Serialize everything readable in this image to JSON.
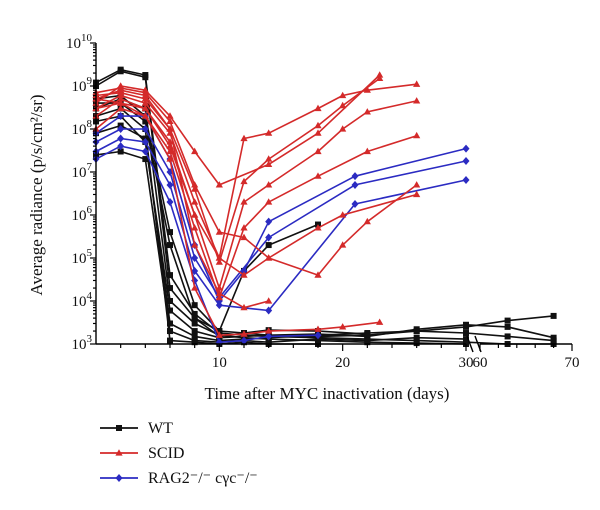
{
  "chart_data": {
    "type": "line",
    "xlabel": "Time after MYC inactivation (days)",
    "ylabel": "Average radiance (p/s/cm²/sr)",
    "y_scale": "log",
    "ylim": [
      1000,
      10000000000
    ],
    "y_ticks": [
      {
        "value": 1000,
        "base": "10",
        "exp": "3"
      },
      {
        "value": 10000,
        "base": "10",
        "exp": "4"
      },
      {
        "value": 100000,
        "base": "10",
        "exp": "5"
      },
      {
        "value": 1000000,
        "base": "10",
        "exp": "6"
      },
      {
        "value": 10000000,
        "base": "10",
        "exp": "7"
      },
      {
        "value": 100000000,
        "base": "10",
        "exp": "8"
      },
      {
        "value": 1000000000,
        "base": "10",
        "exp": "9"
      },
      {
        "value": 10000000000,
        "base": "10",
        "exp": "10"
      }
    ],
    "x_axis_break": {
      "segment1": [
        0,
        30
      ],
      "segment2": [
        60,
        70
      ]
    },
    "x_ticks": [
      {
        "value": 10,
        "label": "10"
      },
      {
        "value": 20,
        "label": "20"
      },
      {
        "value": 30,
        "label": "30"
      },
      {
        "value": 60,
        "label": "60"
      },
      {
        "value": 70,
        "label": "70"
      }
    ],
    "legend": {
      "position": "bottom-left",
      "entries": [
        {
          "label": "WT",
          "color": "#111111",
          "marker": "square"
        },
        {
          "label": "SCID",
          "color": "#d42a2a",
          "marker": "triangle"
        },
        {
          "label": "RAG2⁻/⁻ cγc⁻/⁻",
          "color": "#2b2bc2",
          "marker": "diamond"
        }
      ]
    },
    "series": [
      {
        "group": "WT",
        "color": "#111111",
        "marker": "square",
        "points": [
          [
            0,
            1200000000.0
          ],
          [
            2,
            2400000000.0
          ],
          [
            4,
            1800000000.0
          ],
          [
            6,
            40000.0
          ],
          [
            8,
            5000.0
          ],
          [
            10,
            1800.0
          ],
          [
            12,
            1600.0
          ],
          [
            14,
            1500.0
          ],
          [
            18,
            1400.0
          ],
          [
            22,
            1300.0
          ],
          [
            26,
            1200.0
          ],
          [
            30,
            1100.0
          ],
          [
            63,
            1000.0
          ],
          [
            68,
            1000.0
          ]
        ]
      },
      {
        "group": "WT",
        "color": "#111111",
        "marker": "square",
        "points": [
          [
            0,
            1000000000.0
          ],
          [
            2,
            2200000000.0
          ],
          [
            4,
            1600000000.0
          ],
          [
            6,
            20000.0
          ],
          [
            8,
            4000.0
          ],
          [
            10,
            2000.0
          ],
          [
            12,
            1800.0
          ],
          [
            14,
            1600.0
          ],
          [
            18,
            1500.0
          ],
          [
            22,
            1600.0
          ],
          [
            26,
            2000.0
          ],
          [
            30,
            2500.0
          ],
          [
            63,
            3500.0
          ],
          [
            68,
            4500.0
          ]
        ]
      },
      {
        "group": "WT",
        "color": "#111111",
        "marker": "square",
        "points": [
          [
            0,
            300000000.0
          ],
          [
            2,
            500000000.0
          ],
          [
            4,
            300000000.0
          ],
          [
            6,
            10000.0
          ],
          [
            8,
            3000.0
          ],
          [
            10,
            1600.0
          ],
          [
            12,
            1400.0
          ],
          [
            14,
            1300.0
          ],
          [
            18,
            1200.0
          ],
          [
            22,
            1100.0
          ],
          [
            26,
            1050.0
          ],
          [
            30,
            1000.0
          ]
        ]
      },
      {
        "group": "WT",
        "color": "#111111",
        "marker": "square",
        "points": [
          [
            0,
            200000000.0
          ],
          [
            2,
            300000000.0
          ],
          [
            4,
            100000000.0
          ],
          [
            6,
            1200.0
          ],
          [
            8,
            1100.0
          ],
          [
            10,
            1000.0
          ],
          [
            12,
            1100.0
          ],
          [
            14,
            1000.0
          ],
          [
            18,
            1000.0
          ]
        ]
      },
      {
        "group": "WT",
        "color": "#111111",
        "marker": "square",
        "points": [
          [
            0,
            150000000.0
          ],
          [
            2,
            200000000.0
          ],
          [
            4,
            50000000.0
          ],
          [
            6,
            6000.0
          ],
          [
            8,
            2000.0
          ],
          [
            10,
            1400.0
          ],
          [
            12,
            1500.0
          ],
          [
            14,
            1600.0
          ],
          [
            18,
            1700.0
          ],
          [
            22,
            1500.0
          ],
          [
            26,
            2200.0
          ],
          [
            30,
            2800.0
          ],
          [
            63,
            2500.0
          ],
          [
            68,
            1400.0
          ]
        ]
      },
      {
        "group": "WT",
        "color": "#111111",
        "marker": "square",
        "points": [
          [
            0,
            80000000.0
          ],
          [
            2,
            120000000.0
          ],
          [
            4,
            60000000.0
          ],
          [
            6,
            3000.0
          ],
          [
            8,
            1500.0
          ],
          [
            10,
            1200.0
          ],
          [
            12,
            1300.0
          ],
          [
            14,
            1400.0
          ],
          [
            18,
            1600.0
          ],
          [
            22,
            1800.0
          ],
          [
            26,
            2000.0
          ],
          [
            30,
            1800.0
          ],
          [
            63,
            1500.0
          ],
          [
            68,
            1200.0
          ]
        ]
      },
      {
        "group": "WT",
        "color": "#111111",
        "marker": "square",
        "points": [
          [
            0,
            25000000.0
          ],
          [
            2,
            30000000.0
          ],
          [
            4,
            20000000.0
          ],
          [
            6,
            2000.0
          ],
          [
            8,
            1200.0
          ],
          [
            10,
            1100.0
          ],
          [
            12,
            1200.0
          ],
          [
            14,
            1100.0
          ],
          [
            18,
            1300.0
          ],
          [
            22,
            1200.0
          ],
          [
            26,
            1400.0
          ],
          [
            30,
            1300.0
          ]
        ]
      },
      {
        "group": "WT",
        "color": "#111111",
        "marker": "square",
        "points": [
          [
            0,
            500000000.0
          ],
          [
            2,
            600000000.0
          ],
          [
            4,
            200000000.0
          ],
          [
            6,
            400000.0
          ],
          [
            8,
            8000.0
          ],
          [
            10,
            2000.0
          ],
          [
            12,
            50000.0
          ],
          [
            14,
            200000.0
          ],
          [
            18,
            600000.0
          ]
        ]
      },
      {
        "group": "WT",
        "color": "#111111",
        "marker": "square",
        "points": [
          [
            0,
            400000000.0
          ],
          [
            2,
            400000000.0
          ],
          [
            4,
            150000000.0
          ],
          [
            6,
            200000.0
          ],
          [
            8,
            4000.0
          ],
          [
            10,
            1500.0
          ],
          [
            12,
            1800.0
          ],
          [
            14,
            2100.0
          ],
          [
            18,
            2000.0
          ],
          [
            22,
            1700.0
          ]
        ]
      },
      {
        "group": "SCID",
        "color": "#d42a2a",
        "marker": "triangle",
        "points": [
          [
            0,
            500000000.0
          ],
          [
            2,
            800000000.0
          ],
          [
            4,
            600000000.0
          ],
          [
            6,
            100000000.0
          ],
          [
            8,
            4000000.0
          ],
          [
            10,
            80000.0
          ],
          [
            12,
            6000000.0
          ],
          [
            14,
            20000000.0
          ],
          [
            18,
            120000000.0
          ],
          [
            20,
            350000000.0
          ],
          [
            23,
            1500000000.0
          ]
        ]
      },
      {
        "group": "SCID",
        "color": "#d42a2a",
        "marker": "triangle",
        "points": [
          [
            0,
            400000000.0
          ],
          [
            2,
            1000000000.0
          ],
          [
            4,
            800000000.0
          ],
          [
            6,
            200000000.0
          ],
          [
            8,
            30000000.0
          ],
          [
            10,
            5000000.0
          ],
          [
            14,
            15000000.0
          ],
          [
            18,
            80000000.0
          ],
          [
            23,
            1800000000.0
          ]
        ]
      },
      {
        "group": "SCID",
        "color": "#d42a2a",
        "marker": "triangle",
        "points": [
          [
            0,
            300000000.0
          ],
          [
            2,
            600000000.0
          ],
          [
            4,
            400000000.0
          ],
          [
            6,
            80000000.0
          ],
          [
            8,
            2000000.0
          ],
          [
            10,
            100000.0
          ],
          [
            12,
            60000000.0
          ],
          [
            14,
            80000000.0
          ],
          [
            18,
            300000000.0
          ],
          [
            20,
            600000000.0
          ],
          [
            22,
            800000000.0
          ],
          [
            26,
            1100000000.0
          ]
        ]
      },
      {
        "group": "SCID",
        "color": "#d42a2a",
        "marker": "triangle",
        "points": [
          [
            0,
            200000000.0
          ],
          [
            2,
            500000000.0
          ],
          [
            4,
            300000000.0
          ],
          [
            6,
            50000000.0
          ],
          [
            8,
            1000000.0
          ],
          [
            10,
            20000.0
          ],
          [
            12,
            2000000.0
          ],
          [
            14,
            5000000.0
          ],
          [
            18,
            30000000.0
          ],
          [
            20,
            100000000.0
          ],
          [
            22,
            250000000.0
          ],
          [
            26,
            450000000.0
          ]
        ]
      },
      {
        "group": "SCID",
        "color": "#d42a2a",
        "marker": "triangle",
        "points": [
          [
            0,
            100000000.0
          ],
          [
            2,
            300000000.0
          ],
          [
            4,
            200000000.0
          ],
          [
            6,
            30000000.0
          ],
          [
            8,
            500000.0
          ],
          [
            10,
            12000.0
          ],
          [
            12,
            500000.0
          ],
          [
            14,
            2000000.0
          ],
          [
            18,
            8000000.0
          ],
          [
            22,
            30000000.0
          ],
          [
            26,
            70000000.0
          ]
        ]
      },
      {
        "group": "SCID",
        "color": "#d42a2a",
        "marker": "triangle",
        "points": [
          [
            0,
            700000000.0
          ],
          [
            2,
            900000000.0
          ],
          [
            4,
            700000000.0
          ],
          [
            6,
            150000000.0
          ],
          [
            8,
            5000000.0
          ],
          [
            10,
            400000.0
          ],
          [
            12,
            300000.0
          ],
          [
            14,
            100000.0
          ],
          [
            18,
            40000.0
          ],
          [
            20,
            200000.0
          ],
          [
            22,
            700000.0
          ],
          [
            26,
            5000000.0
          ]
        ]
      },
      {
        "group": "SCID",
        "color": "#d42a2a",
        "marker": "triangle",
        "points": [
          [
            0,
            600000000.0
          ],
          [
            2,
            700000000.0
          ],
          [
            4,
            500000000.0
          ],
          [
            6,
            100000000.0
          ],
          [
            8,
            200000.0
          ],
          [
            10,
            15000.0
          ],
          [
            12,
            7000.0
          ],
          [
            14,
            10000.0
          ]
        ]
      },
      {
        "group": "SCID",
        "color": "#d42a2a",
        "marker": "triangle",
        "points": [
          [
            0,
            500000000.0
          ],
          [
            2,
            400000000.0
          ],
          [
            4,
            300000000.0
          ],
          [
            6,
            40000000.0
          ],
          [
            8,
            1000000.0
          ],
          [
            10,
            100000.0
          ],
          [
            12,
            40000.0
          ],
          [
            14,
            100000.0
          ],
          [
            18,
            500000.0
          ],
          [
            20,
            1000000.0
          ],
          [
            26,
            3000000.0
          ]
        ]
      },
      {
        "group": "SCID",
        "color": "#d42a2a",
        "marker": "triangle",
        "points": [
          [
            0,
            300000000.0
          ],
          [
            2,
            400000000.0
          ],
          [
            4,
            200000000.0
          ],
          [
            6,
            20000000.0
          ],
          [
            8,
            20000.0
          ],
          [
            10,
            1600.0
          ],
          [
            12,
            1700.0
          ],
          [
            14,
            2000.0
          ],
          [
            18,
            2200.0
          ],
          [
            20,
            2500.0
          ],
          [
            23,
            3200.0
          ]
        ]
      },
      {
        "group": "RAG2",
        "color": "#2b2bc2",
        "marker": "diamond",
        "points": [
          [
            0,
            80000000.0
          ],
          [
            2,
            200000000.0
          ],
          [
            4,
            200000000.0
          ],
          [
            6,
            20000000.0
          ],
          [
            8,
            200000.0
          ],
          [
            10,
            10000.0
          ],
          [
            12,
            50000.0
          ],
          [
            14,
            700000.0
          ],
          [
            21,
            8000000.0
          ],
          [
            30,
            35000000.0
          ]
        ]
      },
      {
        "group": "RAG2",
        "color": "#2b2bc2",
        "marker": "diamond",
        "points": [
          [
            0,
            50000000.0
          ],
          [
            2,
            100000000.0
          ],
          [
            4,
            100000000.0
          ],
          [
            6,
            10000000.0
          ],
          [
            8,
            100000.0
          ],
          [
            10,
            12000.0
          ],
          [
            14,
            300000.0
          ],
          [
            21,
            5000000.0
          ],
          [
            30,
            18000000.0
          ]
        ]
      },
      {
        "group": "RAG2",
        "color": "#2b2bc2",
        "marker": "diamond",
        "points": [
          [
            0,
            30000000.0
          ],
          [
            2,
            60000000.0
          ],
          [
            4,
            50000000.0
          ],
          [
            6,
            5000000.0
          ],
          [
            8,
            50000.0
          ],
          [
            10,
            8000.0
          ],
          [
            14,
            6000.0
          ],
          [
            21,
            1800000.0
          ],
          [
            30,
            6500000.0
          ]
        ]
      },
      {
        "group": "RAG2",
        "color": "#2b2bc2",
        "marker": "diamond",
        "points": [
          [
            0,
            20000000.0
          ],
          [
            2,
            40000000.0
          ],
          [
            4,
            30000000.0
          ],
          [
            6,
            2000000.0
          ],
          [
            8,
            30000.0
          ],
          [
            10,
            1100.0
          ],
          [
            12,
            1200.0
          ],
          [
            14,
            1500.0
          ],
          [
            18,
            1600.0
          ]
        ]
      }
    ]
  }
}
